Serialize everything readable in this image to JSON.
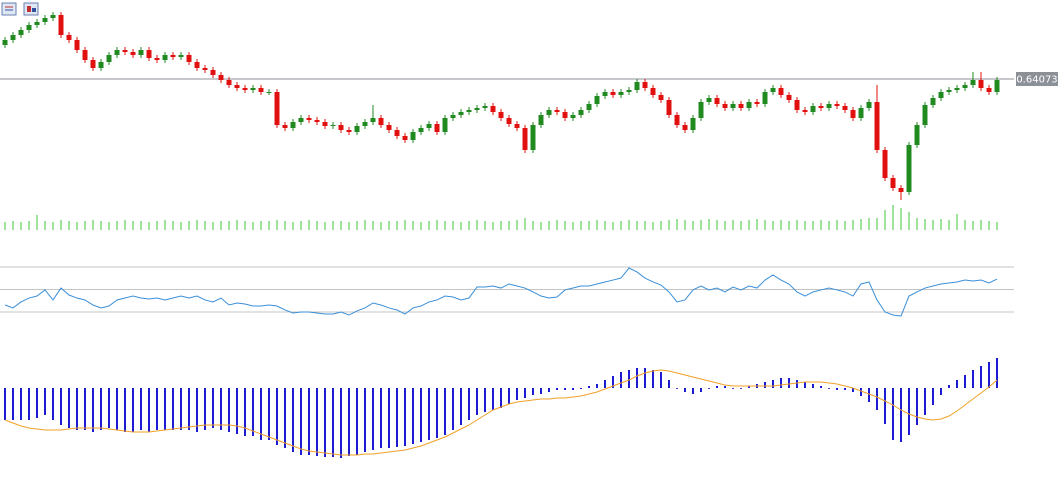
{
  "chart_data": [
    {
      "type": "candlestick",
      "up_color": "#208a20",
      "down_color": "#e01010",
      "wick_color": "#303030",
      "ylim": [
        0.63443,
        0.64468
      ],
      "current_price": 0.64073,
      "current_price_color": "#8c9097",
      "open": [
        0.64243,
        0.64268,
        0.64293,
        0.64318,
        0.64343,
        0.64358,
        0.64378,
        0.64393,
        0.64293,
        0.64268,
        0.64218,
        0.64168,
        0.64128,
        0.64158,
        0.64193,
        0.64218,
        0.64208,
        0.64193,
        0.64218,
        0.64178,
        0.64168,
        0.64193,
        0.64183,
        0.64193,
        0.64158,
        0.64128,
        0.64118,
        0.64093,
        0.64068,
        0.64043,
        0.64028,
        0.64018,
        0.64028,
        0.64008,
        0.64008,
        0.63843,
        0.63828,
        0.63858,
        0.63878,
        0.63868,
        0.63858,
        0.63838,
        0.63843,
        0.63818,
        0.63808,
        0.63838,
        0.63858,
        0.63878,
        0.63843,
        0.63818,
        0.63788,
        0.63768,
        0.63808,
        0.63828,
        0.63848,
        0.63808,
        0.63878,
        0.63893,
        0.63908,
        0.63918,
        0.63928,
        0.63938,
        0.63908,
        0.63878,
        0.63848,
        0.63828,
        0.63718,
        0.63843,
        0.63893,
        0.63918,
        0.63908,
        0.63878,
        0.63893,
        0.63918,
        0.63948,
        0.63988,
        0.64008,
        0.63993,
        0.64008,
        0.64018,
        0.64058,
        0.64028,
        0.63993,
        0.63968,
        0.63893,
        0.63843,
        0.63818,
        0.63878,
        0.63958,
        0.63978,
        0.63948,
        0.63928,
        0.63948,
        0.63928,
        0.63958,
        0.63948,
        0.64008,
        0.64028,
        0.63993,
        0.63968,
        0.63918,
        0.63908,
        0.63938,
        0.63928,
        0.63948,
        0.63938,
        0.63918,
        0.63878,
        0.63928,
        0.63958,
        0.63718,
        0.63578,
        0.63528,
        0.63508,
        0.63743,
        0.63843,
        0.63943,
        0.63978,
        0.64008,
        0.64018,
        0.64028,
        0.64043,
        0.64068,
        0.64028,
        0.64008
      ],
      "high": [
        0.64283,
        0.64308,
        0.64333,
        0.64358,
        0.64373,
        0.64393,
        0.64408,
        0.64408,
        0.64308,
        0.64283,
        0.64233,
        0.64183,
        0.64173,
        0.64208,
        0.64233,
        0.64233,
        0.64223,
        0.64233,
        0.64233,
        0.64193,
        0.64208,
        0.64208,
        0.64208,
        0.64208,
        0.64173,
        0.64143,
        0.64133,
        0.64108,
        0.64083,
        0.64058,
        0.64043,
        0.64043,
        0.64043,
        0.64023,
        0.64023,
        0.63858,
        0.63873,
        0.63893,
        0.63893,
        0.63883,
        0.63873,
        0.63858,
        0.63858,
        0.63833,
        0.63853,
        0.63873,
        0.63943,
        0.63893,
        0.63858,
        0.63833,
        0.63803,
        0.63823,
        0.63843,
        0.63863,
        0.63863,
        0.63893,
        0.63908,
        0.63923,
        0.63933,
        0.63943,
        0.63953,
        0.63953,
        0.63923,
        0.63893,
        0.63863,
        0.63843,
        0.63858,
        0.63908,
        0.63933,
        0.63933,
        0.63923,
        0.63908,
        0.63933,
        0.63963,
        0.64003,
        0.64023,
        0.64023,
        0.64023,
        0.64033,
        0.64073,
        0.64073,
        0.64043,
        0.64008,
        0.63983,
        0.63908,
        0.63858,
        0.63893,
        0.63973,
        0.63993,
        0.63993,
        0.63963,
        0.63963,
        0.63963,
        0.63973,
        0.63973,
        0.64023,
        0.64043,
        0.64043,
        0.64008,
        0.63983,
        0.63933,
        0.63953,
        0.63953,
        0.63963,
        0.63963,
        0.63953,
        0.63933,
        0.63943,
        0.63973,
        0.64043,
        0.63733,
        0.63593,
        0.63543,
        0.63758,
        0.63858,
        0.63958,
        0.63993,
        0.64023,
        0.64033,
        0.64043,
        0.64058,
        0.64108,
        0.64108,
        0.64043,
        0.64083
      ],
      "low": [
        0.64228,
        0.64253,
        0.64278,
        0.64303,
        0.64328,
        0.64343,
        0.64363,
        0.64278,
        0.64253,
        0.64203,
        0.64153,
        0.64113,
        0.64113,
        0.64143,
        0.64178,
        0.64193,
        0.64178,
        0.64178,
        0.64163,
        0.64153,
        0.64153,
        0.64168,
        0.64168,
        0.64143,
        0.64113,
        0.64103,
        0.64078,
        0.64053,
        0.64028,
        0.64013,
        0.64003,
        0.64003,
        0.63993,
        0.63993,
        0.63828,
        0.63813,
        0.63813,
        0.63843,
        0.63853,
        0.63843,
        0.63823,
        0.63823,
        0.63803,
        0.63793,
        0.63793,
        0.63823,
        0.63843,
        0.63828,
        0.63803,
        0.63773,
        0.63753,
        0.63753,
        0.63793,
        0.63813,
        0.63793,
        0.63793,
        0.63863,
        0.63878,
        0.63893,
        0.63903,
        0.63913,
        0.63893,
        0.63863,
        0.63833,
        0.63813,
        0.63703,
        0.63703,
        0.63828,
        0.63878,
        0.63893,
        0.63863,
        0.63863,
        0.63878,
        0.63903,
        0.63933,
        0.63973,
        0.63978,
        0.63978,
        0.63993,
        0.64003,
        0.64013,
        0.63978,
        0.63953,
        0.63878,
        0.63828,
        0.63803,
        0.63803,
        0.63863,
        0.63943,
        0.63933,
        0.63913,
        0.63913,
        0.63913,
        0.63913,
        0.63933,
        0.63933,
        0.63993,
        0.63978,
        0.63953,
        0.63903,
        0.63893,
        0.63893,
        0.63913,
        0.63913,
        0.63923,
        0.63903,
        0.63863,
        0.63863,
        0.63913,
        0.63703,
        0.63563,
        0.63513,
        0.63468,
        0.63493,
        0.63728,
        0.63828,
        0.63928,
        0.63963,
        0.63993,
        0.64003,
        0.64013,
        0.64028,
        0.64013,
        0.63993,
        0.63993
      ],
      "close": [
        0.64268,
        0.64293,
        0.64318,
        0.64343,
        0.64358,
        0.64378,
        0.64393,
        0.64293,
        0.64268,
        0.64218,
        0.64168,
        0.64128,
        0.64158,
        0.64193,
        0.64218,
        0.64208,
        0.64193,
        0.64218,
        0.64178,
        0.64168,
        0.64193,
        0.64183,
        0.64193,
        0.64158,
        0.64128,
        0.64118,
        0.64093,
        0.64068,
        0.64043,
        0.64028,
        0.64018,
        0.64028,
        0.64008,
        0.64008,
        0.63843,
        0.63828,
        0.63858,
        0.63878,
        0.63868,
        0.63858,
        0.63838,
        0.63843,
        0.63818,
        0.63808,
        0.63838,
        0.63858,
        0.63878,
        0.63843,
        0.63818,
        0.63788,
        0.63768,
        0.63808,
        0.63828,
        0.63848,
        0.63808,
        0.63878,
        0.63893,
        0.63908,
        0.63918,
        0.63928,
        0.63938,
        0.63908,
        0.63878,
        0.63848,
        0.63828,
        0.63718,
        0.63843,
        0.63893,
        0.63918,
        0.63908,
        0.63878,
        0.63893,
        0.63918,
        0.63948,
        0.63988,
        0.64008,
        0.63993,
        0.64008,
        0.64018,
        0.64058,
        0.64028,
        0.63993,
        0.63968,
        0.63893,
        0.63843,
        0.63818,
        0.63878,
        0.63958,
        0.63978,
        0.63948,
        0.63928,
        0.63948,
        0.63928,
        0.63958,
        0.63948,
        0.64008,
        0.64028,
        0.63993,
        0.63968,
        0.63918,
        0.63908,
        0.63938,
        0.63928,
        0.63948,
        0.63938,
        0.63918,
        0.63878,
        0.63928,
        0.63958,
        0.63718,
        0.63578,
        0.63528,
        0.63508,
        0.63743,
        0.63843,
        0.63943,
        0.63978,
        0.64008,
        0.64018,
        0.64028,
        0.64043,
        0.64068,
        0.64028,
        0.64008,
        0.64068
      ]
    },
    {
      "type": "bar",
      "color": "#3cc43c",
      "ylim": [
        0,
        30
      ],
      "values": [
        8,
        9,
        8,
        9,
        15,
        9,
        8,
        10,
        9,
        8,
        9,
        10,
        9,
        8,
        9,
        10,
        9,
        9,
        8,
        9,
        10,
        9,
        8,
        9,
        10,
        9,
        8,
        9,
        9,
        10,
        9,
        8,
        9,
        9,
        10,
        9,
        8,
        9,
        10,
        9,
        8,
        9,
        9,
        8,
        9,
        10,
        9,
        8,
        9,
        9,
        10,
        9,
        8,
        9,
        10,
        9,
        9,
        8,
        9,
        10,
        9,
        8,
        9,
        9,
        10,
        12,
        9,
        8,
        9,
        10,
        9,
        8,
        9,
        9,
        10,
        9,
        8,
        9,
        10,
        9,
        9,
        8,
        9,
        10,
        11,
        10,
        9,
        10,
        11,
        10,
        9,
        10,
        9,
        10,
        11,
        10,
        9,
        10,
        9,
        10,
        9,
        9,
        10,
        9,
        10,
        9,
        10,
        11,
        12,
        12,
        20,
        25,
        22,
        18,
        12,
        11,
        10,
        11,
        10,
        16,
        10,
        9,
        10,
        9,
        8
      ]
    },
    {
      "type": "line",
      "color": "#3a8fd8",
      "level_color": "#c4c4c4",
      "ylim": [
        25,
        75
      ],
      "levels": [
        30,
        50,
        70
      ],
      "values": [
        36.2,
        33.6,
        38.9,
        42.4,
        44.2,
        49.6,
        40.7,
        51.3,
        45.1,
        42.4,
        40.7,
        36.2,
        33.6,
        35.3,
        40.7,
        42.4,
        44.2,
        42.4,
        41.6,
        42.4,
        40.7,
        42.4,
        44.2,
        42.4,
        44.2,
        40.7,
        38.9,
        42.4,
        36.2,
        38,
        37.1,
        35.3,
        35.3,
        36.2,
        35.3,
        31.8,
        29.1,
        30,
        30,
        29.1,
        28.2,
        28.2,
        30,
        27.3,
        30.9,
        33.6,
        38,
        36.2,
        33.6,
        31.8,
        28.2,
        33.6,
        35.3,
        38.9,
        40.7,
        44.2,
        43.3,
        40.7,
        42.4,
        52.2,
        52.2,
        53.1,
        51.3,
        54.9,
        53.1,
        51.3,
        47.8,
        44.2,
        42.4,
        43.3,
        49.6,
        51.3,
        53.1,
        53.1,
        54.9,
        56.7,
        58.4,
        60.2,
        69.1,
        65.6,
        60.2,
        56.7,
        54,
        47.8,
        38.9,
        40.7,
        49.6,
        53.1,
        49.6,
        51.3,
        47.8,
        52.2,
        49.6,
        53.1,
        51.3,
        58.4,
        62.9,
        58.4,
        54.9,
        47.8,
        44.2,
        47.8,
        49.6,
        51.3,
        49.6,
        47.8,
        44.2,
        54.9,
        56.7,
        40.7,
        30,
        27.3,
        26.4,
        44.2,
        47.8,
        51.3,
        53.1,
        54.9,
        55.8,
        56.7,
        58.4,
        57.6,
        58.4,
        55.8,
        59.3
      ]
    },
    {
      "type": "macd",
      "ylim": [
        -0.00087,
        0.00053
      ],
      "histogram": {
        "color": "#1c1cd4",
        "values": [
          -0.00032,
          -0.00032,
          -0.00032,
          -0.00032,
          -0.0003,
          -0.00027,
          -0.00032,
          -0.00037,
          -0.0004,
          -0.00042,
          -0.00042,
          -0.00044,
          -0.00042,
          -0.0004,
          -0.00042,
          -0.00044,
          -0.00044,
          -0.00042,
          -0.00044,
          -0.00042,
          -0.00042,
          -0.00042,
          -0.00042,
          -0.00042,
          -0.00044,
          -0.00042,
          -0.0004,
          -0.00042,
          -0.00044,
          -0.00046,
          -0.00048,
          -0.00048,
          -0.00052,
          -0.00052,
          -0.00057,
          -0.0006,
          -0.00064,
          -0.00067,
          -0.00067,
          -0.00068,
          -0.00069,
          -0.00069,
          -0.0007,
          -0.00068,
          -0.00067,
          -0.00064,
          -0.00062,
          -0.0006,
          -0.0006,
          -0.00059,
          -0.00058,
          -0.00056,
          -0.00054,
          -0.00052,
          -0.0005,
          -0.00047,
          -0.00042,
          -0.00037,
          -0.00032,
          -0.00027,
          -0.00024,
          -0.00022,
          -0.0002,
          -0.00016,
          -0.00012,
          -0.0001,
          -7e-05,
          -6e-05,
          -4e-05,
          -2e-05,
          -2e-05,
          -2e-05,
          -1e-05,
          2e-05,
          4e-05,
          8e-05,
          0.00012,
          0.00016,
          0.00018,
          0.0002,
          0.0002,
          0.00018,
          0.00016,
          8e-05,
          0,
          -4e-05,
          -6e-05,
          -4e-05,
          0,
          2e-05,
          2e-05,
          0,
          0,
          2e-05,
          4e-05,
          6e-05,
          8e-05,
          0.0001,
          0.0001,
          8e-05,
          6e-05,
          4e-05,
          2e-05,
          0,
          -2e-05,
          -2e-05,
          -4e-05,
          -8e-05,
          -0.00014,
          -0.00022,
          -0.00036,
          -0.00052,
          -0.00054,
          -0.00047,
          -0.00037,
          -0.00027,
          -0.00017,
          -7e-05,
          3e-05,
          8e-05,
          0.00013,
          0.00018,
          0.00022,
          0.00026,
          0.0003
        ]
      },
      "signal": {
        "color": "#f0a028",
        "values": [
          -0.00032,
          -0.00035,
          -0.00038,
          -0.0004,
          -0.00041,
          -0.00042,
          -0.00042,
          -0.00042,
          -0.00041,
          -0.0004,
          -0.0004,
          -0.0004,
          -0.0004,
          -0.00041,
          -0.00042,
          -0.00043,
          -0.00044,
          -0.00044,
          -0.00044,
          -0.00043,
          -0.00042,
          -0.00041,
          -0.0004,
          -0.00039,
          -0.00038,
          -0.00037,
          -0.00037,
          -0.00037,
          -0.00037,
          -0.00038,
          -0.0004,
          -0.00043,
          -0.00046,
          -0.00049,
          -0.00052,
          -0.00055,
          -0.00058,
          -0.00061,
          -0.00063,
          -0.00064,
          -0.00065,
          -0.00066,
          -0.00067,
          -0.00067,
          -0.00067,
          -0.00066,
          -0.00066,
          -0.00065,
          -0.00064,
          -0.00063,
          -0.00062,
          -0.0006,
          -0.00058,
          -0.00055,
          -0.00052,
          -0.00049,
          -0.00045,
          -0.00041,
          -0.00037,
          -0.00032,
          -0.00027,
          -0.00022,
          -0.00019,
          -0.00016,
          -0.00014,
          -0.00013,
          -0.00012,
          -0.00011,
          -0.00011,
          -0.0001,
          -0.0001,
          -9e-05,
          -8e-05,
          -6e-05,
          -4e-05,
          -1e-05,
          2e-05,
          5e-05,
          8e-05,
          0.00012,
          0.00015,
          0.00017,
          0.00018,
          0.00017,
          0.00015,
          0.00013,
          0.00011,
          9e-05,
          7e-05,
          5e-05,
          3e-05,
          2e-05,
          2e-05,
          2e-05,
          2e-05,
          2e-05,
          2e-05,
          3e-05,
          4e-05,
          5e-05,
          6e-05,
          6e-05,
          6e-05,
          5e-05,
          4e-05,
          2e-05,
          0,
          -3e-05,
          -6e-05,
          -9e-05,
          -0.00013,
          -0.00017,
          -0.00022,
          -0.00026,
          -0.00029,
          -0.00031,
          -0.00032,
          -0.00031,
          -0.00028,
          -0.00023,
          -0.00017,
          -0.00011,
          -5e-05,
          1e-05,
          8e-05
        ]
      }
    }
  ]
}
